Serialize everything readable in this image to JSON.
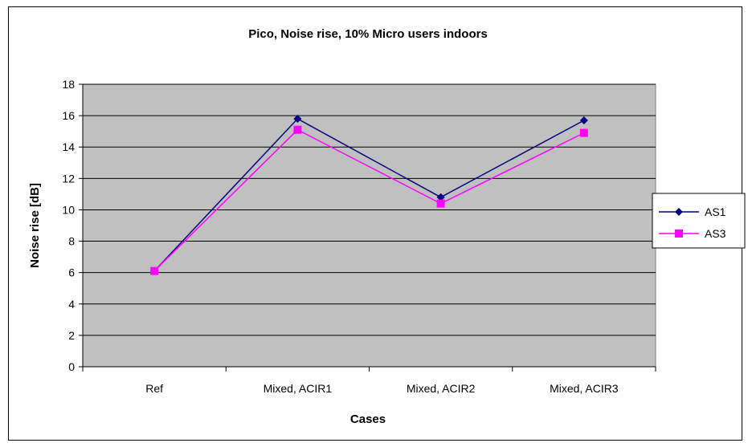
{
  "chart_data": {
    "type": "line",
    "title": "Pico, Noise rise, 10% Micro users indoors",
    "xlabel": "Cases",
    "ylabel": "Noise rise [dB]",
    "categories": [
      "Ref",
      "Mixed, ACIR1",
      "Mixed, ACIR2",
      "Mixed, ACIR3"
    ],
    "ylim": [
      0,
      18
    ],
    "yticks": [
      0,
      2,
      4,
      6,
      8,
      10,
      12,
      14,
      16,
      18
    ],
    "grid": true,
    "legend_position": "right",
    "plot_background": "#c0c0c0",
    "series": [
      {
        "name": "AS1",
        "values": [
          6.1,
          15.8,
          10.8,
          15.7
        ],
        "color": "#000080",
        "marker": "diamond"
      },
      {
        "name": "AS3",
        "values": [
          6.1,
          15.1,
          10.4,
          14.9
        ],
        "color": "#ff00ff",
        "marker": "square"
      }
    ]
  }
}
